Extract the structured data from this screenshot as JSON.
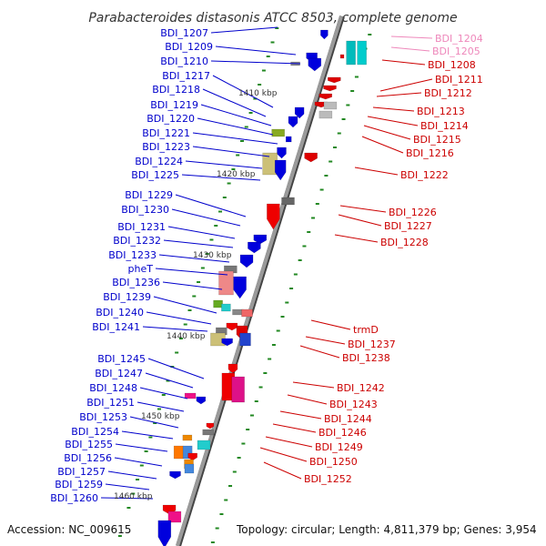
{
  "title": "Parabacteroides distasonis ATCC 8503, complete genome",
  "accession": "Accession: NC_009615",
  "topology": "Topology: circular; Length: 4,811,379 bp; Genes: 3,954",
  "kbp_labels": [
    "1410 kbp",
    "1420 kbp",
    "1430 kbp",
    "1440 kbp",
    "1450 kbp",
    "1460 kbp"
  ],
  "colors": {
    "left_label": "#0000cc",
    "right_label": "#cc0000",
    "faded_label": "#ee88bb",
    "backbone": "#888888",
    "tick": "#228822"
  },
  "left_genes": [
    "BDI_1207",
    "BDI_1209",
    "BDI_1210",
    "BDI_1217",
    "BDI_1218",
    "BDI_1219",
    "BDI_1220",
    "BDI_1221",
    "BDI_1223",
    "BDI_1224",
    "BDI_1225",
    "BDI_1229",
    "BDI_1230",
    "BDI_1231",
    "BDI_1232",
    "BDI_1233",
    "pheT",
    "BDI_1236",
    "BDI_1239",
    "BDI_1240",
    "BDI_1241",
    "BDI_1245",
    "BDI_1247",
    "BDI_1248",
    "BDI_1251",
    "BDI_1253",
    "BDI_1254",
    "BDI_1255",
    "BDI_1256",
    "BDI_1257",
    "BDI_1259",
    "BDI_1260"
  ],
  "right_genes": [
    "BDI_1204",
    "BDI_1205",
    "BDI_1208",
    "BDI_1211",
    "BDI_1212",
    "BDI_1213",
    "BDI_1214",
    "BDI_1215",
    "BDI_1216",
    "BDI_1222",
    "BDI_1226",
    "BDI_1227",
    "BDI_1228",
    "trmD",
    "BDI_1237",
    "BDI_1238",
    "BDI_1242",
    "BDI_1243",
    "BDI_1244",
    "BDI_1246",
    "BDI_1249",
    "BDI_1250",
    "BDI_1252"
  ]
}
